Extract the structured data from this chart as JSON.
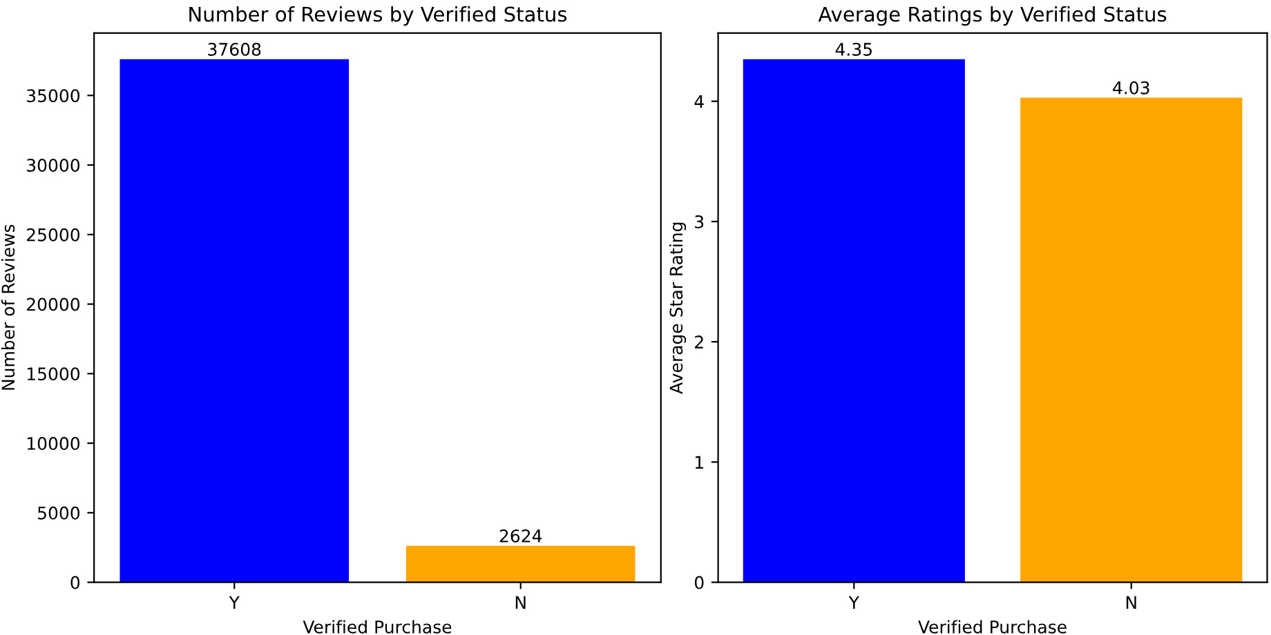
{
  "chart_data": [
    {
      "type": "bar",
      "title": "Number of Reviews by Verified Status",
      "xlabel": "Verified Purchase",
      "ylabel": "Number of Reviews",
      "categories": [
        "Y",
        "N"
      ],
      "values": [
        37608,
        2624
      ],
      "colors": [
        "#0000ff",
        "#ffa500"
      ],
      "data_labels": true,
      "ylim": [
        0,
        39488
      ],
      "yticks": [
        0,
        5000,
        10000,
        15000,
        20000,
        25000,
        30000,
        35000
      ],
      "grid": false,
      "legend": false
    },
    {
      "type": "bar",
      "title": "Average Ratings by Verified Status",
      "xlabel": "Verified Purchase",
      "ylabel": "Average Star Rating",
      "categories": [
        "Y",
        "N"
      ],
      "values": [
        4.35,
        4.03
      ],
      "colors": [
        "#0000ff",
        "#ffa500"
      ],
      "data_labels": true,
      "ylim": [
        0,
        4.5675
      ],
      "yticks": [
        0,
        1,
        2,
        3,
        4
      ],
      "grid": false,
      "legend": false
    }
  ]
}
